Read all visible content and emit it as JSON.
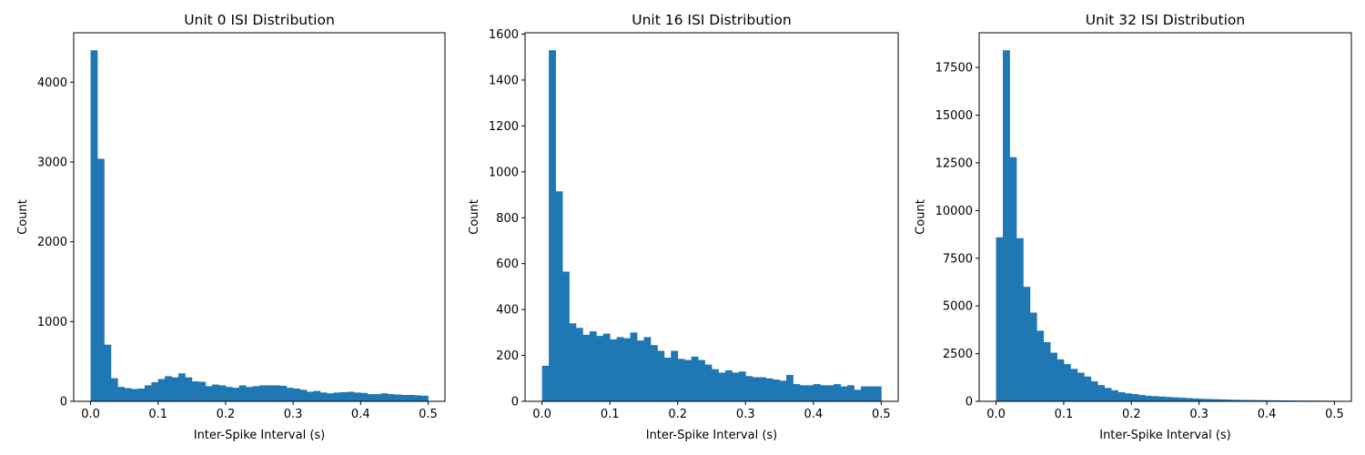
{
  "chart_data": [
    {
      "type": "bar",
      "title": "Unit 0 ISI Distribution",
      "xlabel": "Inter-Spike Interval (s)",
      "ylabel": "Count",
      "bin_width": 0.01,
      "xlim": [
        -0.025,
        0.525
      ],
      "ylim": [
        0,
        4620
      ],
      "xticks": [
        0.0,
        0.1,
        0.2,
        0.3,
        0.4,
        0.5
      ],
      "xtick_labels": [
        "0.0",
        "0.1",
        "0.2",
        "0.3",
        "0.4",
        "0.5"
      ],
      "yticks": [
        0,
        1000,
        2000,
        3000,
        4000
      ],
      "ytick_labels": [
        "0",
        "1000",
        "2000",
        "3000",
        "4000"
      ],
      "bin_starts": [
        0.0,
        0.01,
        0.02,
        0.03,
        0.04,
        0.05,
        0.06,
        0.07,
        0.08,
        0.09,
        0.1,
        0.11,
        0.12,
        0.13,
        0.14,
        0.15,
        0.16,
        0.17,
        0.18,
        0.19,
        0.2,
        0.21,
        0.22,
        0.23,
        0.24,
        0.25,
        0.26,
        0.27,
        0.28,
        0.29,
        0.3,
        0.31,
        0.32,
        0.33,
        0.34,
        0.35,
        0.36,
        0.37,
        0.38,
        0.39,
        0.4,
        0.41,
        0.42,
        0.43,
        0.44,
        0.45,
        0.46,
        0.47,
        0.48,
        0.49
      ],
      "values": [
        4400,
        3040,
        710,
        290,
        180,
        165,
        155,
        160,
        200,
        240,
        280,
        315,
        300,
        350,
        300,
        250,
        245,
        190,
        210,
        200,
        180,
        170,
        200,
        180,
        190,
        200,
        200,
        200,
        195,
        170,
        160,
        145,
        120,
        130,
        110,
        100,
        110,
        115,
        120,
        110,
        105,
        90,
        90,
        100,
        90,
        85,
        80,
        80,
        75,
        70
      ]
    },
    {
      "type": "bar",
      "title": "Unit 16 ISI Distribution",
      "xlabel": "Inter-Spike Interval (s)",
      "ylabel": "Count",
      "bin_width": 0.01,
      "xlim": [
        -0.025,
        0.525
      ],
      "ylim": [
        0,
        1606
      ],
      "xticks": [
        0.0,
        0.1,
        0.2,
        0.3,
        0.4,
        0.5
      ],
      "xtick_labels": [
        "0.0",
        "0.1",
        "0.2",
        "0.3",
        "0.4",
        "0.5"
      ],
      "yticks": [
        0,
        200,
        400,
        600,
        800,
        1000,
        1200,
        1400,
        1600
      ],
      "ytick_labels": [
        "0",
        "200",
        "400",
        "600",
        "800",
        "1000",
        "1200",
        "1400",
        "1600"
      ],
      "bin_starts": [
        0.0,
        0.01,
        0.02,
        0.03,
        0.04,
        0.05,
        0.06,
        0.07,
        0.08,
        0.09,
        0.1,
        0.11,
        0.12,
        0.13,
        0.14,
        0.15,
        0.16,
        0.17,
        0.18,
        0.19,
        0.2,
        0.21,
        0.22,
        0.23,
        0.24,
        0.25,
        0.26,
        0.27,
        0.28,
        0.29,
        0.3,
        0.31,
        0.32,
        0.33,
        0.34,
        0.35,
        0.36,
        0.37,
        0.38,
        0.39,
        0.4,
        0.41,
        0.42,
        0.43,
        0.44,
        0.45,
        0.46,
        0.47,
        0.48,
        0.49
      ],
      "values": [
        155,
        1530,
        915,
        565,
        340,
        320,
        290,
        305,
        285,
        295,
        270,
        280,
        275,
        300,
        265,
        280,
        245,
        220,
        190,
        220,
        185,
        180,
        195,
        180,
        160,
        140,
        125,
        135,
        125,
        130,
        110,
        105,
        105,
        100,
        95,
        90,
        115,
        75,
        70,
        70,
        75,
        70,
        70,
        75,
        65,
        70,
        50,
        65,
        65,
        65
      ]
    },
    {
      "type": "bar",
      "title": "Unit 32 ISI Distribution",
      "xlabel": "Inter-Spike Interval (s)",
      "ylabel": "Count",
      "bin_width": 0.01,
      "xlim": [
        -0.025,
        0.525
      ],
      "ylim": [
        0,
        19320
      ],
      "xticks": [
        0.0,
        0.1,
        0.2,
        0.3,
        0.4,
        0.5
      ],
      "xtick_labels": [
        "0.0",
        "0.1",
        "0.2",
        "0.3",
        "0.4",
        "0.5"
      ],
      "yticks": [
        0,
        2500,
        5000,
        7500,
        10000,
        12500,
        15000,
        17500
      ],
      "ytick_labels": [
        "0",
        "2500",
        "5000",
        "7500",
        "10000",
        "12500",
        "15000",
        "17500"
      ],
      "bin_starts": [
        0.0,
        0.01,
        0.02,
        0.03,
        0.04,
        0.05,
        0.06,
        0.07,
        0.08,
        0.09,
        0.1,
        0.11,
        0.12,
        0.13,
        0.14,
        0.15,
        0.16,
        0.17,
        0.18,
        0.19,
        0.2,
        0.21,
        0.22,
        0.23,
        0.24,
        0.25,
        0.26,
        0.27,
        0.28,
        0.29,
        0.3,
        0.31,
        0.32,
        0.33,
        0.34,
        0.35,
        0.36,
        0.37,
        0.38,
        0.39,
        0.4,
        0.41,
        0.42,
        0.43,
        0.44,
        0.45,
        0.46,
        0.47,
        0.48,
        0.49
      ],
      "values": [
        8600,
        18400,
        12800,
        8550,
        6000,
        4650,
        3700,
        3100,
        2550,
        2200,
        1950,
        1700,
        1500,
        1300,
        1050,
        850,
        700,
        580,
        480,
        420,
        380,
        330,
        290,
        270,
        250,
        230,
        210,
        190,
        170,
        150,
        130,
        120,
        110,
        100,
        90,
        80,
        75,
        70,
        65,
        60,
        55,
        50,
        48,
        45,
        42,
        40,
        38,
        36,
        34,
        32
      ]
    }
  ]
}
